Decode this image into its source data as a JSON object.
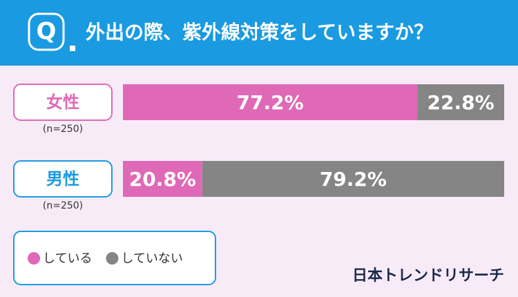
{
  "chart_data": {
    "type": "stacked_bar_horizontal",
    "title": "外出の際、紫外線対策をしていますか？",
    "icon_label": "Q",
    "categories": [
      "女性",
      "男性"
    ],
    "category_notes": [
      "(n=250)",
      "(n=250)"
    ],
    "series": [
      {
        "name": "している",
        "color": "#df69b6",
        "values": [
          77.2,
          20.8
        ],
        "value_labels": [
          "77.2%",
          "20.8%"
        ]
      },
      {
        "name": "していない",
        "color": "#858586",
        "values": [
          22.8,
          79.2
        ],
        "value_labels": [
          "22.8%",
          "79.2%"
        ]
      }
    ],
    "xlim": [
      0,
      100
    ],
    "source": "日本トレンドリサーチ"
  }
}
